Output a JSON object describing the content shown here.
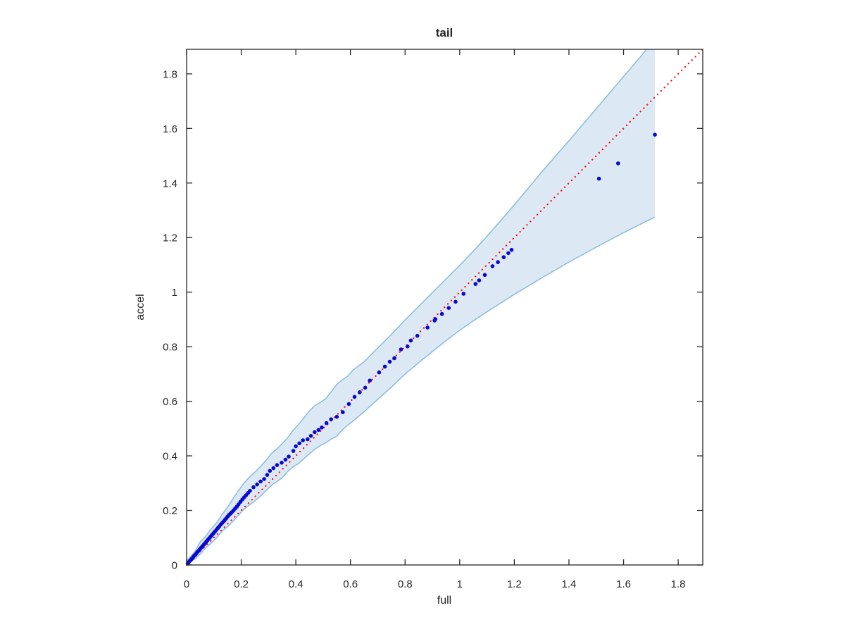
{
  "window": {
    "background": "#ffffff"
  },
  "colors": {
    "axis": "#262626",
    "text": "#262626",
    "marker": "#0909cf",
    "reference_line": "#ff0000",
    "band_fill": "#dce9f5",
    "band_edge": "#8ebedc"
  },
  "chart_data": {
    "type": "scatter",
    "title": "tail",
    "xlabel": "full",
    "ylabel": "accel",
    "xlim": [
      0,
      1.89
    ],
    "ylim": [
      0,
      1.89
    ],
    "grid": false,
    "box": true,
    "legend": null,
    "xticks": {
      "values": [
        0,
        0.2,
        0.4,
        0.6,
        0.8,
        1.0,
        1.2,
        1.4,
        1.6,
        1.8
      ],
      "labels": [
        "0",
        "0.2",
        "0.4",
        "0.6",
        "0.8",
        "1",
        "1.2",
        "1.4",
        "1.6",
        "1.8"
      ]
    },
    "yticks": {
      "values": [
        0,
        0.2,
        0.4,
        0.6,
        0.8,
        1.0,
        1.2,
        1.4,
        1.6,
        1.8
      ],
      "labels": [
        "0",
        "0.2",
        "0.4",
        "0.6",
        "0.8",
        "1",
        "1.2",
        "1.4",
        "1.6",
        "1.8"
      ]
    },
    "reference_line": {
      "style": "dotted",
      "color": "#ff0000",
      "from": [
        0,
        0
      ],
      "to": [
        1.89,
        1.89
      ]
    },
    "confidence_band": {
      "fill": "#dce9f5",
      "edge": "#8ebedc",
      "close_x": 1.715,
      "upper": [
        [
          0.0,
          0.015
        ],
        [
          0.03,
          0.048
        ],
        [
          0.05,
          0.085
        ],
        [
          0.07,
          0.105
        ],
        [
          0.09,
          0.132
        ],
        [
          0.11,
          0.155
        ],
        [
          0.13,
          0.185
        ],
        [
          0.15,
          0.212
        ],
        [
          0.17,
          0.243
        ],
        [
          0.19,
          0.273
        ],
        [
          0.21,
          0.3
        ],
        [
          0.23,
          0.322
        ],
        [
          0.25,
          0.34
        ],
        [
          0.27,
          0.36
        ],
        [
          0.29,
          0.383
        ],
        [
          0.31,
          0.408
        ],
        [
          0.33,
          0.425
        ],
        [
          0.35,
          0.444
        ],
        [
          0.37,
          0.466
        ],
        [
          0.39,
          0.494
        ],
        [
          0.41,
          0.515
        ],
        [
          0.43,
          0.54
        ],
        [
          0.45,
          0.565
        ],
        [
          0.47,
          0.585
        ],
        [
          0.49,
          0.596
        ],
        [
          0.51,
          0.61
        ],
        [
          0.53,
          0.636
        ],
        [
          0.55,
          0.662
        ],
        [
          0.57,
          0.678
        ],
        [
          0.59,
          0.692
        ],
        [
          0.61,
          0.715
        ],
        [
          0.65,
          0.745
        ],
        [
          0.7,
          0.795
        ],
        [
          0.75,
          0.845
        ],
        [
          0.8,
          0.898
        ],
        [
          0.85,
          0.948
        ],
        [
          0.9,
          0.998
        ],
        [
          0.95,
          1.048
        ],
        [
          1.0,
          1.098
        ],
        [
          1.05,
          1.15
        ],
        [
          1.1,
          1.205
        ],
        [
          1.15,
          1.262
        ],
        [
          1.2,
          1.32
        ],
        [
          1.3,
          1.44
        ],
        [
          1.4,
          1.555
        ],
        [
          1.5,
          1.672
        ],
        [
          1.6,
          1.79
        ],
        [
          1.66,
          1.86
        ],
        [
          1.684,
          1.89
        ]
      ],
      "lower": [
        [
          0.0,
          0.0
        ],
        [
          0.03,
          0.022
        ],
        [
          0.05,
          0.04
        ],
        [
          0.07,
          0.062
        ],
        [
          0.09,
          0.08
        ],
        [
          0.11,
          0.1
        ],
        [
          0.13,
          0.124
        ],
        [
          0.15,
          0.14
        ],
        [
          0.17,
          0.16
        ],
        [
          0.19,
          0.182
        ],
        [
          0.21,
          0.205
        ],
        [
          0.23,
          0.22
        ],
        [
          0.25,
          0.235
        ],
        [
          0.27,
          0.252
        ],
        [
          0.29,
          0.272
        ],
        [
          0.31,
          0.292
        ],
        [
          0.33,
          0.305
        ],
        [
          0.35,
          0.32
        ],
        [
          0.37,
          0.342
        ],
        [
          0.39,
          0.36
        ],
        [
          0.41,
          0.372
        ],
        [
          0.43,
          0.39
        ],
        [
          0.45,
          0.408
        ],
        [
          0.47,
          0.425
        ],
        [
          0.49,
          0.438
        ],
        [
          0.51,
          0.448
        ],
        [
          0.53,
          0.462
        ],
        [
          0.55,
          0.472
        ],
        [
          0.57,
          0.495
        ],
        [
          0.59,
          0.512
        ],
        [
          0.61,
          0.528
        ],
        [
          0.65,
          0.562
        ],
        [
          0.7,
          0.607
        ],
        [
          0.75,
          0.652
        ],
        [
          0.8,
          0.7
        ],
        [
          0.85,
          0.742
        ],
        [
          0.9,
          0.782
        ],
        [
          0.95,
          0.822
        ],
        [
          1.0,
          0.86
        ],
        [
          1.05,
          0.895
        ],
        [
          1.1,
          0.928
        ],
        [
          1.15,
          0.96
        ],
        [
          1.2,
          0.992
        ],
        [
          1.3,
          1.052
        ],
        [
          1.4,
          1.11
        ],
        [
          1.5,
          1.165
        ],
        [
          1.6,
          1.218
        ],
        [
          1.7,
          1.268
        ],
        [
          1.715,
          1.275
        ]
      ]
    },
    "point_color": "#0909cf",
    "points": [
      [
        0.004,
        0.005
      ],
      [
        0.008,
        0.01
      ],
      [
        0.012,
        0.015
      ],
      [
        0.016,
        0.019
      ],
      [
        0.02,
        0.024
      ],
      [
        0.024,
        0.029
      ],
      [
        0.028,
        0.034
      ],
      [
        0.032,
        0.038
      ],
      [
        0.036,
        0.043
      ],
      [
        0.04,
        0.048
      ],
      [
        0.044,
        0.052
      ],
      [
        0.048,
        0.057
      ],
      [
        0.052,
        0.062
      ],
      [
        0.056,
        0.066
      ],
      [
        0.06,
        0.071
      ],
      [
        0.064,
        0.076
      ],
      [
        0.068,
        0.08
      ],
      [
        0.072,
        0.085
      ],
      [
        0.076,
        0.09
      ],
      [
        0.08,
        0.095
      ],
      [
        0.084,
        0.099
      ],
      [
        0.088,
        0.104
      ],
      [
        0.092,
        0.109
      ],
      [
        0.096,
        0.113
      ],
      [
        0.1,
        0.118
      ],
      [
        0.105,
        0.124
      ],
      [
        0.11,
        0.13
      ],
      [
        0.115,
        0.136
      ],
      [
        0.12,
        0.142
      ],
      [
        0.125,
        0.148
      ],
      [
        0.13,
        0.154
      ],
      [
        0.135,
        0.159
      ],
      [
        0.14,
        0.165
      ],
      [
        0.145,
        0.171
      ],
      [
        0.15,
        0.177
      ],
      [
        0.155,
        0.183
      ],
      [
        0.16,
        0.188
      ],
      [
        0.166,
        0.194
      ],
      [
        0.172,
        0.2
      ],
      [
        0.178,
        0.207
      ],
      [
        0.184,
        0.214
      ],
      [
        0.19,
        0.222
      ],
      [
        0.197,
        0.231
      ],
      [
        0.204,
        0.24
      ],
      [
        0.211,
        0.248
      ],
      [
        0.218,
        0.256
      ],
      [
        0.225,
        0.264
      ],
      [
        0.232,
        0.272
      ],
      [
        0.245,
        0.285
      ],
      [
        0.258,
        0.295
      ],
      [
        0.271,
        0.306
      ],
      [
        0.284,
        0.315
      ],
      [
        0.295,
        0.33
      ],
      [
        0.305,
        0.345
      ],
      [
        0.318,
        0.355
      ],
      [
        0.331,
        0.366
      ],
      [
        0.348,
        0.375
      ],
      [
        0.362,
        0.386
      ],
      [
        0.374,
        0.397
      ],
      [
        0.391,
        0.418
      ],
      [
        0.4,
        0.435
      ],
      [
        0.413,
        0.446
      ],
      [
        0.426,
        0.457
      ],
      [
        0.443,
        0.461
      ],
      [
        0.455,
        0.473
      ],
      [
        0.469,
        0.487
      ],
      [
        0.483,
        0.495
      ],
      [
        0.495,
        0.504
      ],
      [
        0.512,
        0.52
      ],
      [
        0.529,
        0.534
      ],
      [
        0.55,
        0.543
      ],
      [
        0.572,
        0.56
      ],
      [
        0.594,
        0.59
      ],
      [
        0.615,
        0.616
      ],
      [
        0.634,
        0.633
      ],
      [
        0.654,
        0.65
      ],
      [
        0.671,
        0.676
      ],
      [
        0.705,
        0.706
      ],
      [
        0.726,
        0.727
      ],
      [
        0.744,
        0.745
      ],
      [
        0.761,
        0.758
      ],
      [
        0.785,
        0.79
      ],
      [
        0.809,
        0.801
      ],
      [
        0.821,
        0.823
      ],
      [
        0.845,
        0.84
      ],
      [
        0.882,
        0.87
      ],
      [
        0.908,
        0.896
      ],
      [
        0.911,
        0.901
      ],
      [
        0.935,
        0.92
      ],
      [
        0.96,
        0.942
      ],
      [
        0.985,
        0.965
      ],
      [
        1.014,
        0.994
      ],
      [
        1.058,
        1.03
      ],
      [
        1.071,
        1.043
      ],
      [
        1.092,
        1.063
      ],
      [
        1.12,
        1.095
      ],
      [
        1.14,
        1.11
      ],
      [
        1.161,
        1.128
      ],
      [
        1.178,
        1.143
      ],
      [
        1.19,
        1.155
      ],
      [
        1.51,
        1.416
      ],
      [
        1.58,
        1.472
      ],
      [
        1.715,
        1.577
      ]
    ]
  }
}
